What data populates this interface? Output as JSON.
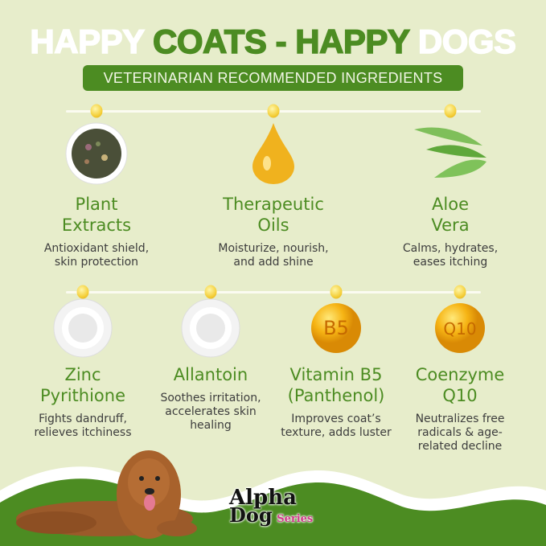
{
  "header": {
    "title_parts": [
      {
        "text": "HAPPY ",
        "color": "white"
      },
      {
        "text": "COATS - HAPPY ",
        "color": "green"
      },
      {
        "text": "DOGS",
        "color": "white"
      }
    ],
    "subtitle": "VETERINARIAN RECOMMENDED INGREDIENTS"
  },
  "colors": {
    "background": "#e7edcb",
    "green": "#4c8c22",
    "dot": "#f4cf3a"
  },
  "top_row": [
    {
      "name": "Plant\nExtracts",
      "desc": "Antioxidant shield,\nskin protection",
      "icon": "herb-bowl"
    },
    {
      "name": "Therapeutic\nOils",
      "desc": "Moisturize, nourish,\nand add shine",
      "icon": "oil-drop"
    },
    {
      "name": "Aloe\nVera",
      "desc": "Calms, hydrates,\neases itching",
      "icon": "aloe-leaves"
    }
  ],
  "bottom_row": [
    {
      "name": "Zinc\nPyrithione",
      "desc": "Fights dandruff,\nrelieves itchiness",
      "icon": "powder-bowl"
    },
    {
      "name": "Allantoin",
      "desc": "Soothes irritation,\naccelerates skin\nhealing",
      "icon": "powder-bowl"
    },
    {
      "name": "Vitamin B5\n(Panthenol)",
      "desc": "Improves coat’s\ntexture, adds luster",
      "icon": "vitamin-orb",
      "orb_label": "B5"
    },
    {
      "name": "Coenzyme\nQ10",
      "desc": "Neutralizes free\nradicals & age-\nrelated decline",
      "icon": "vitamin-orb",
      "orb_label": "Q10"
    }
  ],
  "logo": {
    "line1": "Alpha",
    "line2": "Dog",
    "line3": "Series"
  }
}
